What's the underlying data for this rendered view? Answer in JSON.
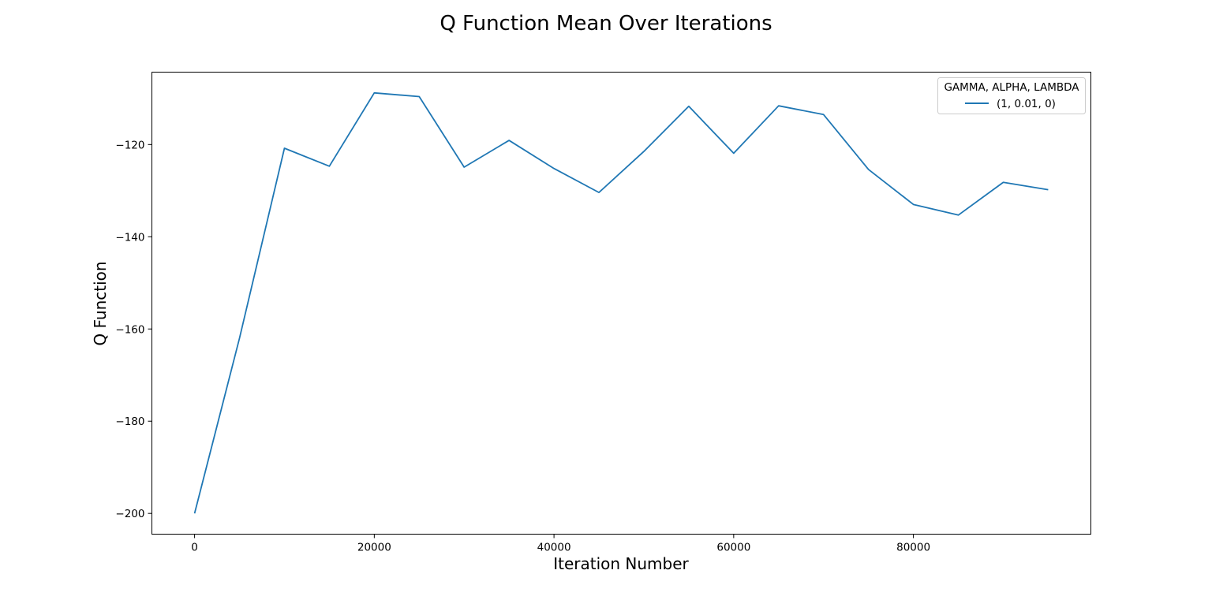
{
  "chart_data": {
    "type": "line",
    "title": "Q Function Mean Over Iterations",
    "xlabel": "Iteration Number",
    "ylabel": "Q Function",
    "xlim": [
      -4750,
      99750
    ],
    "ylim": [
      -204.5,
      -104.3
    ],
    "xticks": [
      0,
      20000,
      40000,
      60000,
      80000
    ],
    "xtick_labels": [
      "0",
      "20000",
      "40000",
      "60000",
      "80000"
    ],
    "yticks": [
      -200,
      -180,
      -160,
      -140,
      -120
    ],
    "ytick_labels": [
      "−200",
      "−180",
      "−160",
      "−140",
      "−120"
    ],
    "grid": false,
    "legend": {
      "title": "GAMMA, ALPHA, LAMBDA",
      "placement": "upper right"
    },
    "series": [
      {
        "name": "(1, 0.01, 0)",
        "color": "#1f77b4",
        "x": [
          0,
          5000,
          10000,
          15000,
          20000,
          25000,
          30000,
          35000,
          40000,
          45000,
          50000,
          55000,
          60000,
          65000,
          70000,
          75000,
          80000,
          85000,
          90000,
          95000
        ],
        "y": [
          -200,
          -162,
          -120.8,
          -124.7,
          -108.8,
          -109.6,
          -124.9,
          -119.1,
          -125.2,
          -130.4,
          -121.5,
          -111.7,
          -121.9,
          -111.6,
          -113.5,
          -125.4,
          -133,
          -135.3,
          -128.2,
          -129.8
        ]
      }
    ]
  }
}
